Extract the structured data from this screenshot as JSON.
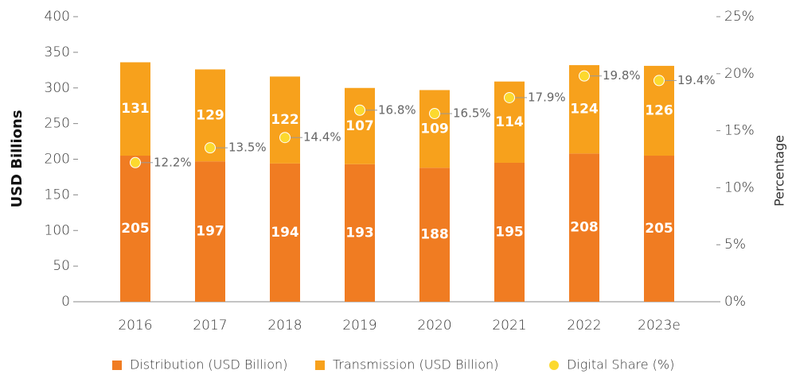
{
  "chart_data": {
    "type": "bar",
    "stacked": true,
    "categories": [
      "2016",
      "2017",
      "2018",
      "2019",
      "2020",
      "2021",
      "2022",
      "2023e"
    ],
    "series": [
      {
        "name": "Distribution (USD Billion)",
        "color": "#f07c22",
        "values": [
          205,
          197,
          194,
          193,
          188,
          195,
          208,
          205
        ]
      },
      {
        "name": "Transmission (USD Billion)",
        "color": "#f7a11c",
        "values": [
          131,
          129,
          122,
          107,
          109,
          114,
          124,
          126
        ]
      },
      {
        "name": "Digital Share (%)",
        "color": "#fcd92e",
        "type": "scatter",
        "axis": "y2",
        "values": [
          12.2,
          13.5,
          14.4,
          16.8,
          16.5,
          17.9,
          19.8,
          19.4
        ],
        "value_labels": [
          "12.2%",
          "13.5%",
          "14.4%",
          "16.8%",
          "16.5%",
          "17.9%",
          "19.8%",
          "19.4%"
        ]
      }
    ],
    "ylabel": "USD Billions",
    "y2label": "Percentage",
    "ylim": [
      0,
      400
    ],
    "yticks": [
      0,
      50,
      100,
      150,
      200,
      250,
      300,
      350,
      400
    ],
    "y2lim": [
      0,
      25
    ],
    "y2ticks": [
      {
        "value": 0,
        "label": "0%"
      },
      {
        "value": 5,
        "label": "5%"
      },
      {
        "value": 10,
        "label": "10%"
      },
      {
        "value": 15,
        "label": "15%"
      },
      {
        "value": 20,
        "label": "20%"
      },
      {
        "value": 25,
        "label": "25%"
      }
    ],
    "legend": "bottom"
  }
}
